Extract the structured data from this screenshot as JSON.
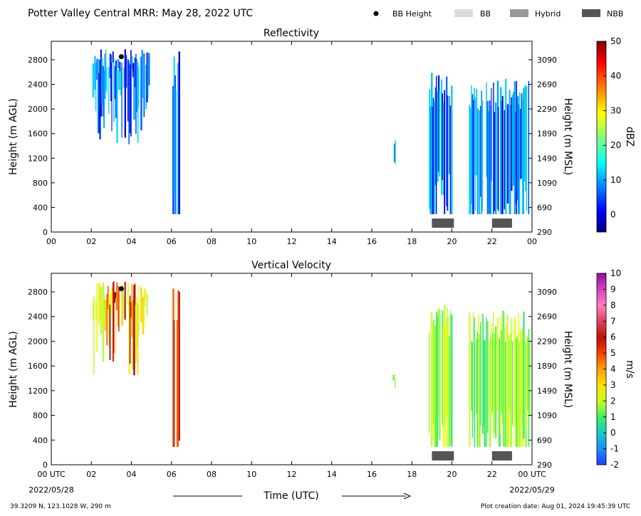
{
  "figure": {
    "title": "Potter Valley Central MRR:  May 28, 2022 UTC",
    "legend": [
      {
        "label": "BB Height",
        "marker": "dot",
        "color": "#000000"
      },
      {
        "label": "BB",
        "marker": "rect",
        "color": "#dcdcdc"
      },
      {
        "label": "Hybrid",
        "marker": "rect",
        "color": "#999999"
      },
      {
        "label": "NBB",
        "marker": "rect",
        "color": "#555555"
      }
    ],
    "xlabel": "Time (UTC)",
    "start_label": "00 UTC",
    "start_date": "2022/05/28",
    "end_label": "00 UTC",
    "end_date": "2022/05/29",
    "location": "39.3209 N, 123.1028 W, 290 m",
    "creation": "Plot creation date: Aug 01, 2024 19:45:39 UTC"
  },
  "chart_data": [
    {
      "type": "heatmap",
      "title": "Reflectivity",
      "ylabel": "Height (m AGL)",
      "y2label": "Height (m MSL)",
      "colorbar_label": "dBZ",
      "colorbar_ticks": [
        "0",
        "10",
        "20",
        "30",
        "40",
        "50"
      ],
      "colorbar_range": [
        -5,
        50
      ],
      "x_ticks": [
        "00",
        "02",
        "04",
        "06",
        "08",
        "10",
        "12",
        "14",
        "16",
        "18",
        "20",
        "22",
        "00"
      ],
      "y_ticks": [
        "0",
        "400",
        "800",
        "1200",
        "1600",
        "2000",
        "2400",
        "2800"
      ],
      "y2_ticks": [
        "290",
        "690",
        "1090",
        "1490",
        "1890",
        "2290",
        "2690",
        "3090"
      ],
      "xlim": [
        0,
        24
      ],
      "ylim": [
        0,
        3100
      ],
      "bb_height": [
        {
          "time": 3.5,
          "height": 2850
        }
      ],
      "nbb_periods": [
        [
          19.0,
          20.1
        ],
        [
          22.0,
          23.0
        ]
      ],
      "echo_periods": [
        {
          "start": 2.0,
          "end": 4.9,
          "bottom": 1400,
          "top": 2980
        },
        {
          "start": 6.0,
          "end": 6.4,
          "bottom": 290,
          "top": 2980
        },
        {
          "start": 17.0,
          "end": 17.2,
          "bottom": 1100,
          "top": 1500
        },
        {
          "start": 18.8,
          "end": 20.0,
          "bottom": 290,
          "top": 2600
        },
        {
          "start": 20.8,
          "end": 23.9,
          "bottom": 290,
          "top": 2500
        }
      ]
    },
    {
      "type": "heatmap",
      "title": "Vertical Velocity",
      "ylabel": "Height (m AGL)",
      "y2label": "Height (m MSL)",
      "colorbar_label": "m/s",
      "colorbar_ticks": [
        "-2",
        "-1",
        "0",
        "1",
        "2",
        "3",
        "4",
        "5",
        "6",
        "7",
        "8",
        "9",
        "10"
      ],
      "colorbar_range": [
        -2,
        10
      ],
      "x_ticks": [
        "00 UTC",
        "02",
        "04",
        "06",
        "08",
        "10",
        "12",
        "14",
        "16",
        "18",
        "20",
        "22",
        "00 UTC"
      ],
      "y_ticks": [
        "0",
        "400",
        "800",
        "1200",
        "1600",
        "2000",
        "2400",
        "2800"
      ],
      "y2_ticks": [
        "290",
        "690",
        "1090",
        "1490",
        "1890",
        "2290",
        "2690",
        "3090"
      ],
      "xlim": [
        0,
        24
      ],
      "ylim": [
        0,
        3100
      ],
      "bb_height": [
        {
          "time": 3.5,
          "height": 2850
        }
      ],
      "nbb_periods": [
        [
          19.0,
          20.1
        ],
        [
          22.0,
          23.0
        ]
      ],
      "echo_periods": [
        {
          "start": 2.0,
          "end": 4.9,
          "bottom": 1400,
          "top": 2980
        },
        {
          "start": 6.0,
          "end": 6.4,
          "bottom": 290,
          "top": 2980
        },
        {
          "start": 17.0,
          "end": 17.2,
          "bottom": 1100,
          "top": 1500
        },
        {
          "start": 18.8,
          "end": 20.0,
          "bottom": 290,
          "top": 2600
        },
        {
          "start": 20.8,
          "end": 23.9,
          "bottom": 290,
          "top": 2500
        }
      ]
    }
  ]
}
